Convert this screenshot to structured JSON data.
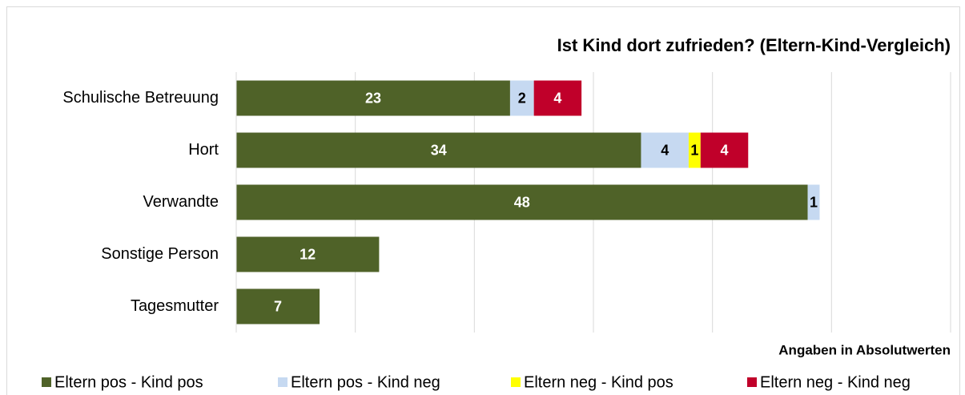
{
  "chart_data": {
    "type": "bar",
    "orientation": "horizontal",
    "stacked": true,
    "title": "Ist Kind dort zufrieden? (Eltern-Kind-Vergleich)",
    "x_label": "Angaben in Absolutwerten",
    "categories": [
      "Schulische Betreuung",
      "Hort",
      "Verwandte",
      "Sonstige Person",
      "Tagesmutter"
    ],
    "series": [
      {
        "name": "Eltern pos - Kind pos",
        "color": "#4f6228",
        "values": [
          23,
          34,
          48,
          12,
          7
        ]
      },
      {
        "name": "Eltern pos - Kind neg",
        "color": "#c6d9f1",
        "values": [
          2,
          4,
          1,
          null,
          null
        ]
      },
      {
        "name": "Eltern neg - Kind pos",
        "color": "#ffff00",
        "values": [
          null,
          1,
          null,
          null,
          null
        ]
      },
      {
        "name": "Eltern neg - Kind neg",
        "color": "#c0002a",
        "values": [
          4,
          4,
          null,
          null,
          null
        ]
      }
    ],
    "xlim": [
      0,
      60
    ],
    "xticks": [
      0,
      10,
      20,
      30,
      40,
      50,
      60
    ],
    "grid": true
  }
}
